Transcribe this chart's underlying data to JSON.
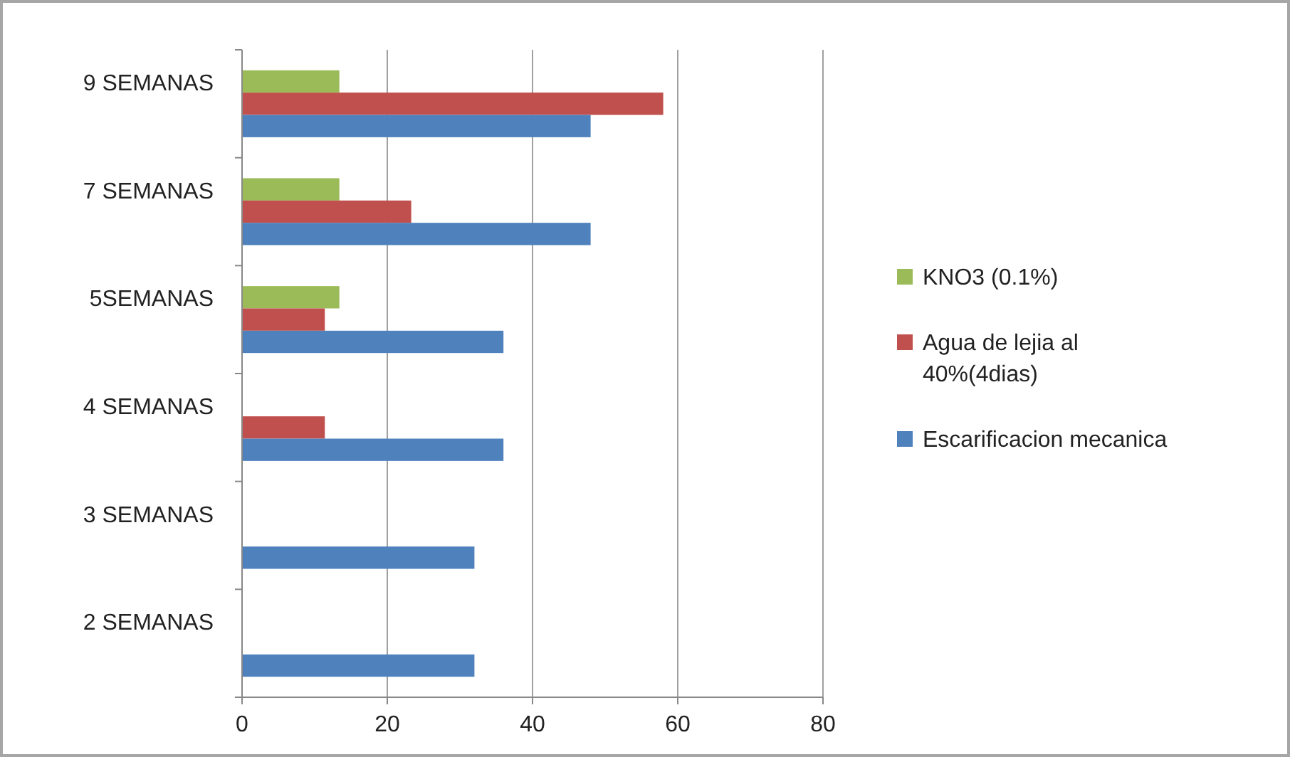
{
  "chart_data": {
    "type": "bar",
    "orientation": "horizontal",
    "categories": [
      "9 SEMANAS",
      "7 SEMANAS",
      "5SEMANAS",
      "4 SEMANAS",
      "3 SEMANAS",
      "2 SEMANAS"
    ],
    "series": [
      {
        "name": "KNO3 (0.1%)",
        "color": "#9bbb59",
        "values": [
          13.4,
          13.4,
          13.4,
          null,
          null,
          null
        ]
      },
      {
        "name": "Agua de lejia al 40%(4dias)",
        "color": "#c0504d",
        "values": [
          58,
          23.3,
          11.4,
          11.4,
          null,
          null
        ]
      },
      {
        "name": "Escarificacion mecanica",
        "color": "#4f81bd",
        "values": [
          48,
          48,
          36,
          36,
          32,
          32
        ]
      }
    ],
    "xlim": [
      0,
      80
    ],
    "xticks": [
      0,
      20,
      40,
      60,
      80
    ],
    "grid": "x",
    "legend": "right"
  }
}
